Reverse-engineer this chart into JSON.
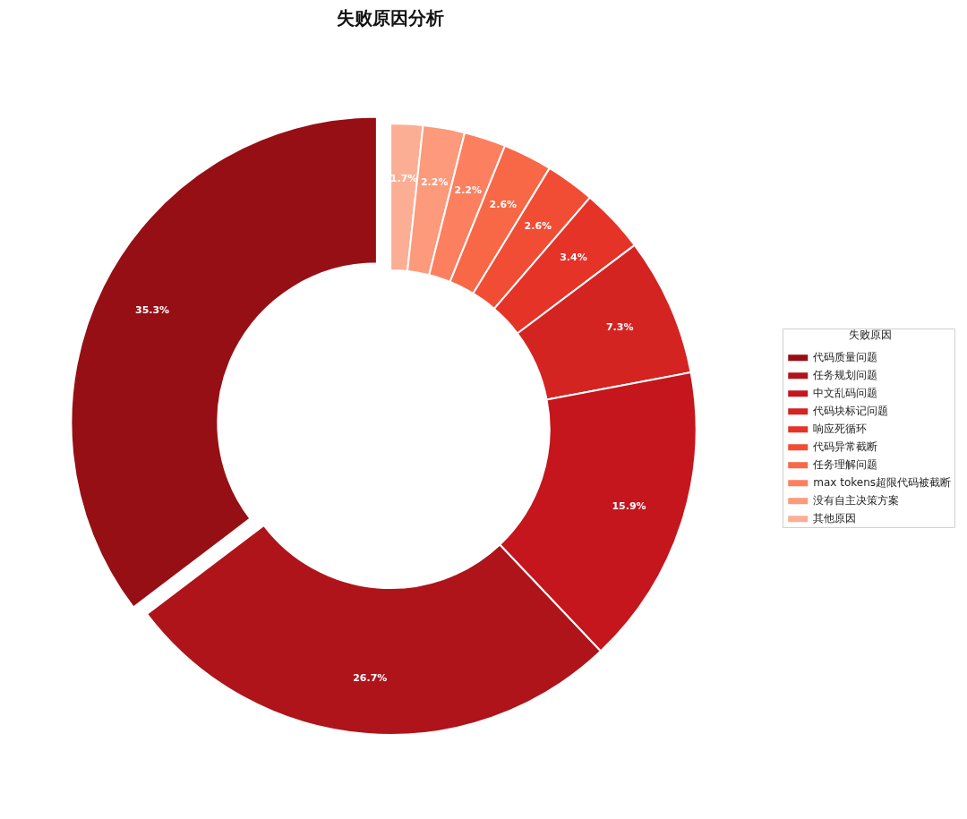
{
  "chart_data": {
    "type": "donut",
    "title": "失败原因分析",
    "legend_title": "失败原因",
    "categories": [
      "代码质量问题",
      "任务规划问题",
      "中文乱码问题",
      "代码块标记问题",
      "响应死循环",
      "代码异常截断",
      "任务理解问题",
      "max tokens超限代码被截断",
      "没有自主决策方案",
      "其他原因"
    ],
    "values": [
      35.3,
      26.7,
      15.9,
      7.3,
      3.4,
      2.6,
      2.6,
      2.2,
      2.2,
      1.7
    ],
    "colors": [
      "#960f15",
      "#ae141a",
      "#c4161c",
      "#d42422",
      "#e63328",
      "#f14d35",
      "#f86847",
      "#fc8060",
      "#fc9a7b",
      "#fcae94"
    ],
    "value_labels": [
      "35.3%",
      "26.7%",
      "15.9%",
      "7.3%",
      "3.4%",
      "2.6%",
      "2.6%",
      "2.2%",
      "2.2%",
      "1.7%"
    ],
    "legend": "right"
  }
}
